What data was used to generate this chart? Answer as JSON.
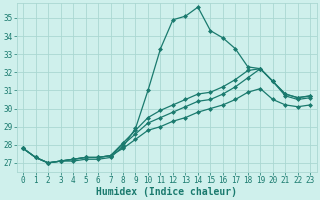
{
  "xlabel": "Humidex (Indice chaleur)",
  "bg_color": "#cff0ec",
  "grid_color": "#aad8d2",
  "line_color": "#1a7a6e",
  "text_color": "#1a7a6e",
  "xlim": [
    -0.5,
    23.5
  ],
  "ylim": [
    26.5,
    35.8
  ],
  "yticks": [
    27,
    28,
    29,
    30,
    31,
    32,
    33,
    34,
    35
  ],
  "xticks": [
    0,
    1,
    2,
    3,
    4,
    5,
    6,
    7,
    8,
    9,
    10,
    11,
    12,
    13,
    14,
    15,
    16,
    17,
    18,
    19,
    20,
    21,
    22,
    23
  ],
  "lines": [
    [
      27.8,
      27.3,
      27.0,
      27.1,
      27.1,
      27.2,
      27.2,
      27.3,
      27.9,
      28.9,
      31.0,
      33.3,
      34.9,
      35.1,
      35.6,
      34.3,
      33.9,
      33.3,
      32.3,
      32.2,
      31.5,
      30.8,
      30.6,
      30.7
    ],
    [
      27.8,
      27.3,
      27.0,
      27.1,
      27.2,
      27.3,
      27.3,
      27.4,
      28.1,
      28.8,
      29.5,
      29.9,
      30.2,
      30.5,
      30.8,
      30.9,
      31.2,
      31.6,
      32.1,
      32.2,
      31.5,
      30.8,
      30.6,
      30.7
    ],
    [
      27.8,
      27.3,
      27.0,
      27.1,
      27.2,
      27.3,
      27.3,
      27.4,
      28.0,
      28.6,
      29.2,
      29.5,
      29.8,
      30.1,
      30.4,
      30.5,
      30.8,
      31.2,
      31.7,
      32.2,
      31.5,
      30.7,
      30.5,
      30.6
    ],
    [
      27.8,
      27.3,
      27.0,
      27.1,
      27.2,
      27.3,
      27.3,
      27.4,
      27.8,
      28.3,
      28.8,
      29.0,
      29.3,
      29.5,
      29.8,
      30.0,
      30.2,
      30.5,
      30.9,
      31.1,
      30.5,
      30.2,
      30.1,
      30.2
    ]
  ],
  "marker": "D",
  "marker_size": 2.0,
  "linewidth": 0.9,
  "tick_fontsize": 5.5,
  "xlabel_fontsize": 7.0
}
